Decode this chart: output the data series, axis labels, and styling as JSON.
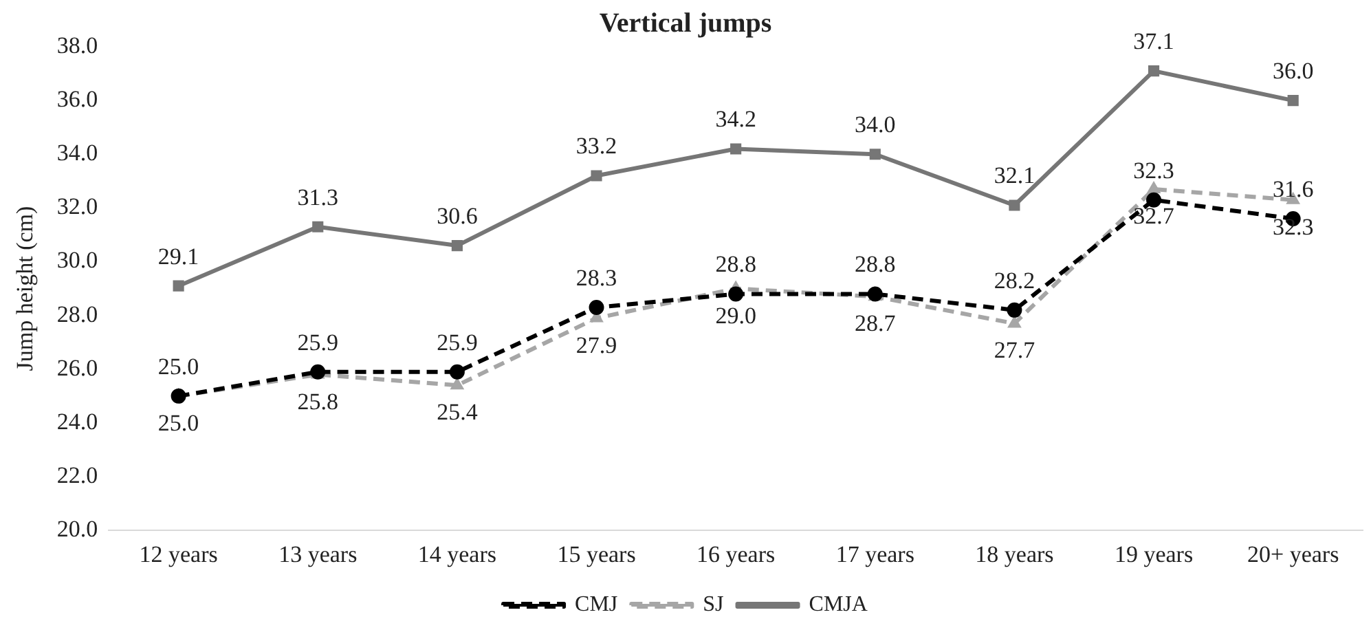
{
  "chart_data": {
    "type": "line",
    "title": "Vertical jumps",
    "ylabel": "Jump height (cm)",
    "categories": [
      "12 years",
      "13 years",
      "14 years",
      "15 years",
      "16 years",
      "17 years",
      "18 years",
      "19 years",
      "20+ years"
    ],
    "series": [
      {
        "name": "CMJ",
        "color": "#000000",
        "marker": "circle",
        "line_style": "dashed",
        "values": [
          25.0,
          25.9,
          25.9,
          28.3,
          28.8,
          28.8,
          28.2,
          32.3,
          31.6
        ],
        "value_labels": [
          "25.0",
          "25.9",
          "25.9",
          "28.3",
          "28.8",
          "28.8",
          "28.2",
          "32.3",
          "31.6"
        ]
      },
      {
        "name": "SJ",
        "color": "#a6a6a6",
        "marker": "triangle",
        "line_style": "dashed",
        "values": [
          25.0,
          25.8,
          25.4,
          27.9,
          29.0,
          28.7,
          27.7,
          32.7,
          32.3
        ],
        "value_labels": [
          "25.0",
          "25.8",
          "25.4",
          "27.9",
          "29.0",
          "28.7",
          "27.7",
          "32.7",
          "32.3"
        ]
      },
      {
        "name": "CMJA",
        "color": "#767676",
        "marker": "square",
        "line_style": "solid",
        "values": [
          29.1,
          31.3,
          30.6,
          33.2,
          34.2,
          34.0,
          32.1,
          37.1,
          36.0
        ],
        "value_labels": [
          "29.1",
          "31.3",
          "30.6",
          "33.2",
          "34.2",
          "34.0",
          "32.1",
          "37.1",
          "36.0"
        ]
      }
    ],
    "ylim": [
      20,
      38
    ],
    "yticks": [
      {
        "value": 20,
        "label": "20.0"
      },
      {
        "value": 22,
        "label": "22.0"
      },
      {
        "value": 24,
        "label": "24.0"
      },
      {
        "value": 26,
        "label": "26.0"
      },
      {
        "value": 28,
        "label": "28.0"
      },
      {
        "value": 30,
        "label": "30.0"
      },
      {
        "value": 32,
        "label": "32.0"
      },
      {
        "value": 34,
        "label": "34.0"
      },
      {
        "value": 36,
        "label": "36.0"
      },
      {
        "value": 38,
        "label": "38.0"
      }
    ],
    "grid": false,
    "legend": "bottom"
  }
}
